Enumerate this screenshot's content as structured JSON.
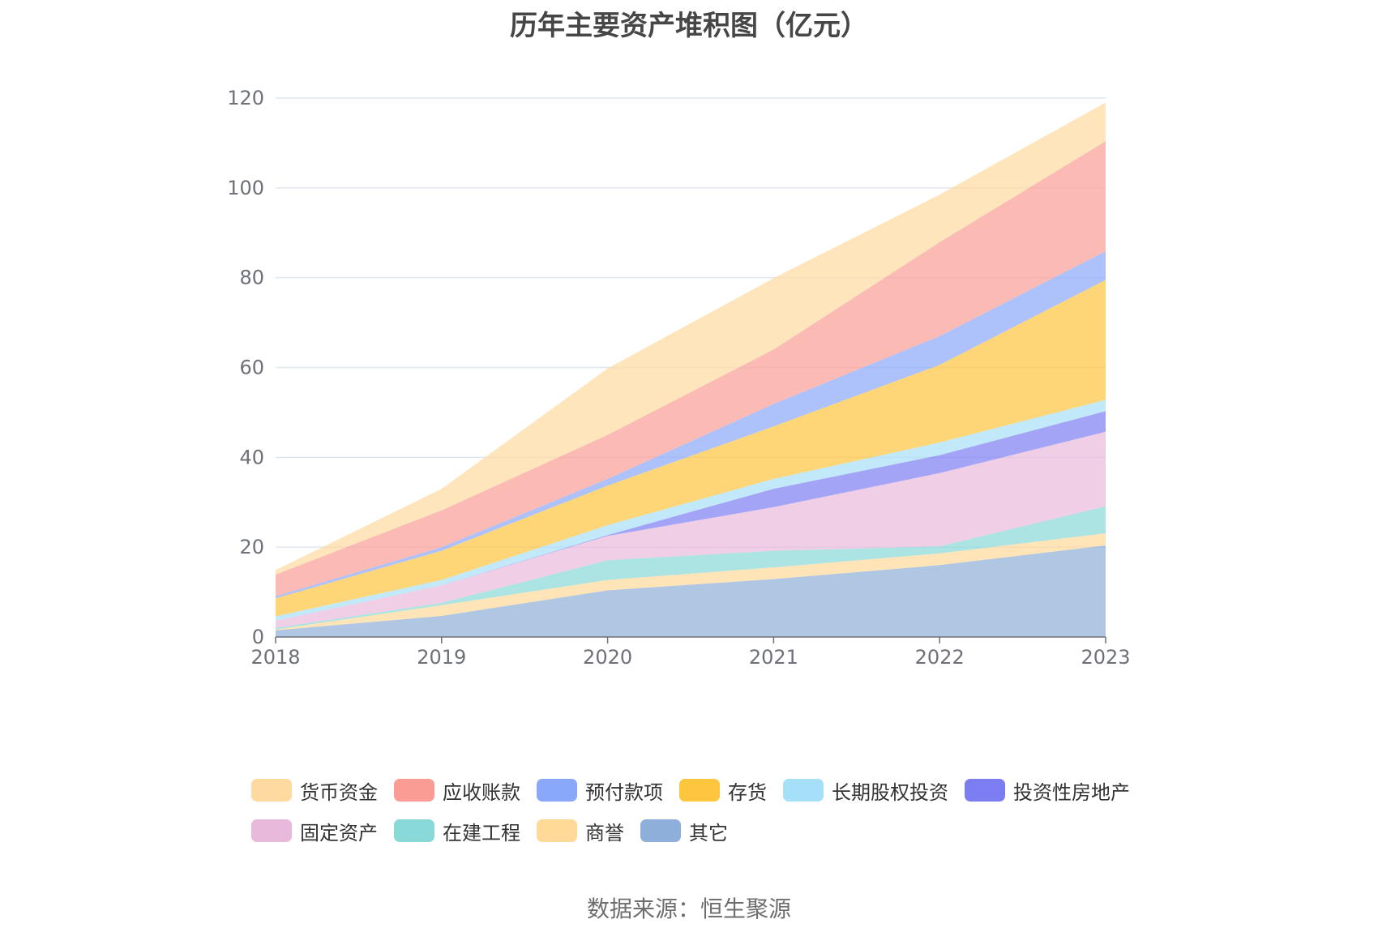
{
  "chart_data": {
    "type": "area",
    "stacked": true,
    "title": "历年主要资产堆积图（亿元）",
    "source": "数据来源：恒生聚源",
    "x": [
      "2018",
      "2019",
      "2020",
      "2021",
      "2022",
      "2023"
    ],
    "ylim": [
      0,
      120
    ],
    "yticks": [
      "0",
      "20",
      "40",
      "60",
      "80",
      "100",
      "120"
    ],
    "grid": true,
    "legend_position": "bottom",
    "series": [
      {
        "name": "其它",
        "color": "#8eafd9",
        "values": [
          1.5,
          4.7,
          10.4,
          12.9,
          16.0,
          20.4
        ]
      },
      {
        "name": "商誉",
        "color": "#fed998",
        "values": [
          0.2,
          2.4,
          2.3,
          2.6,
          2.6,
          2.7
        ]
      },
      {
        "name": "在建工程",
        "color": "#89d9d9",
        "values": [
          0.3,
          0.5,
          4.4,
          3.7,
          1.6,
          6.0
        ]
      },
      {
        "name": "固定资产",
        "color": "#e8b9db",
        "values": [
          1.6,
          3.9,
          5.4,
          9.7,
          16.3,
          16.6
        ]
      },
      {
        "name": "投资性房地产",
        "color": "#7c7df1",
        "values": [
          0.0,
          0.0,
          0.2,
          4.1,
          4.0,
          4.6
        ]
      },
      {
        "name": "长期股权投资",
        "color": "#a6dff8",
        "values": [
          1.0,
          1.2,
          2.2,
          2.2,
          2.8,
          2.5
        ]
      },
      {
        "name": "存货",
        "color": "#fec53e",
        "values": [
          4.0,
          6.5,
          8.8,
          11.7,
          17.3,
          26.7
        ]
      },
      {
        "name": "预付款项",
        "color": "#8aa8fa",
        "values": [
          0.5,
          0.8,
          1.5,
          5.0,
          6.4,
          6.4
        ]
      },
      {
        "name": "应收账款",
        "color": "#fb9c94",
        "values": [
          4.8,
          8.2,
          9.8,
          12.1,
          20.9,
          24.5
        ]
      },
      {
        "name": "货币资金",
        "color": "#fedaa0",
        "values": [
          1.0,
          4.8,
          14.8,
          15.9,
          10.6,
          8.6
        ]
      }
    ],
    "legend_order": [
      "货币资金",
      "应收账款",
      "预付款项",
      "存货",
      "长期股权投资",
      "投资性房地产",
      "固定资产",
      "在建工程",
      "商誉",
      "其它"
    ]
  }
}
